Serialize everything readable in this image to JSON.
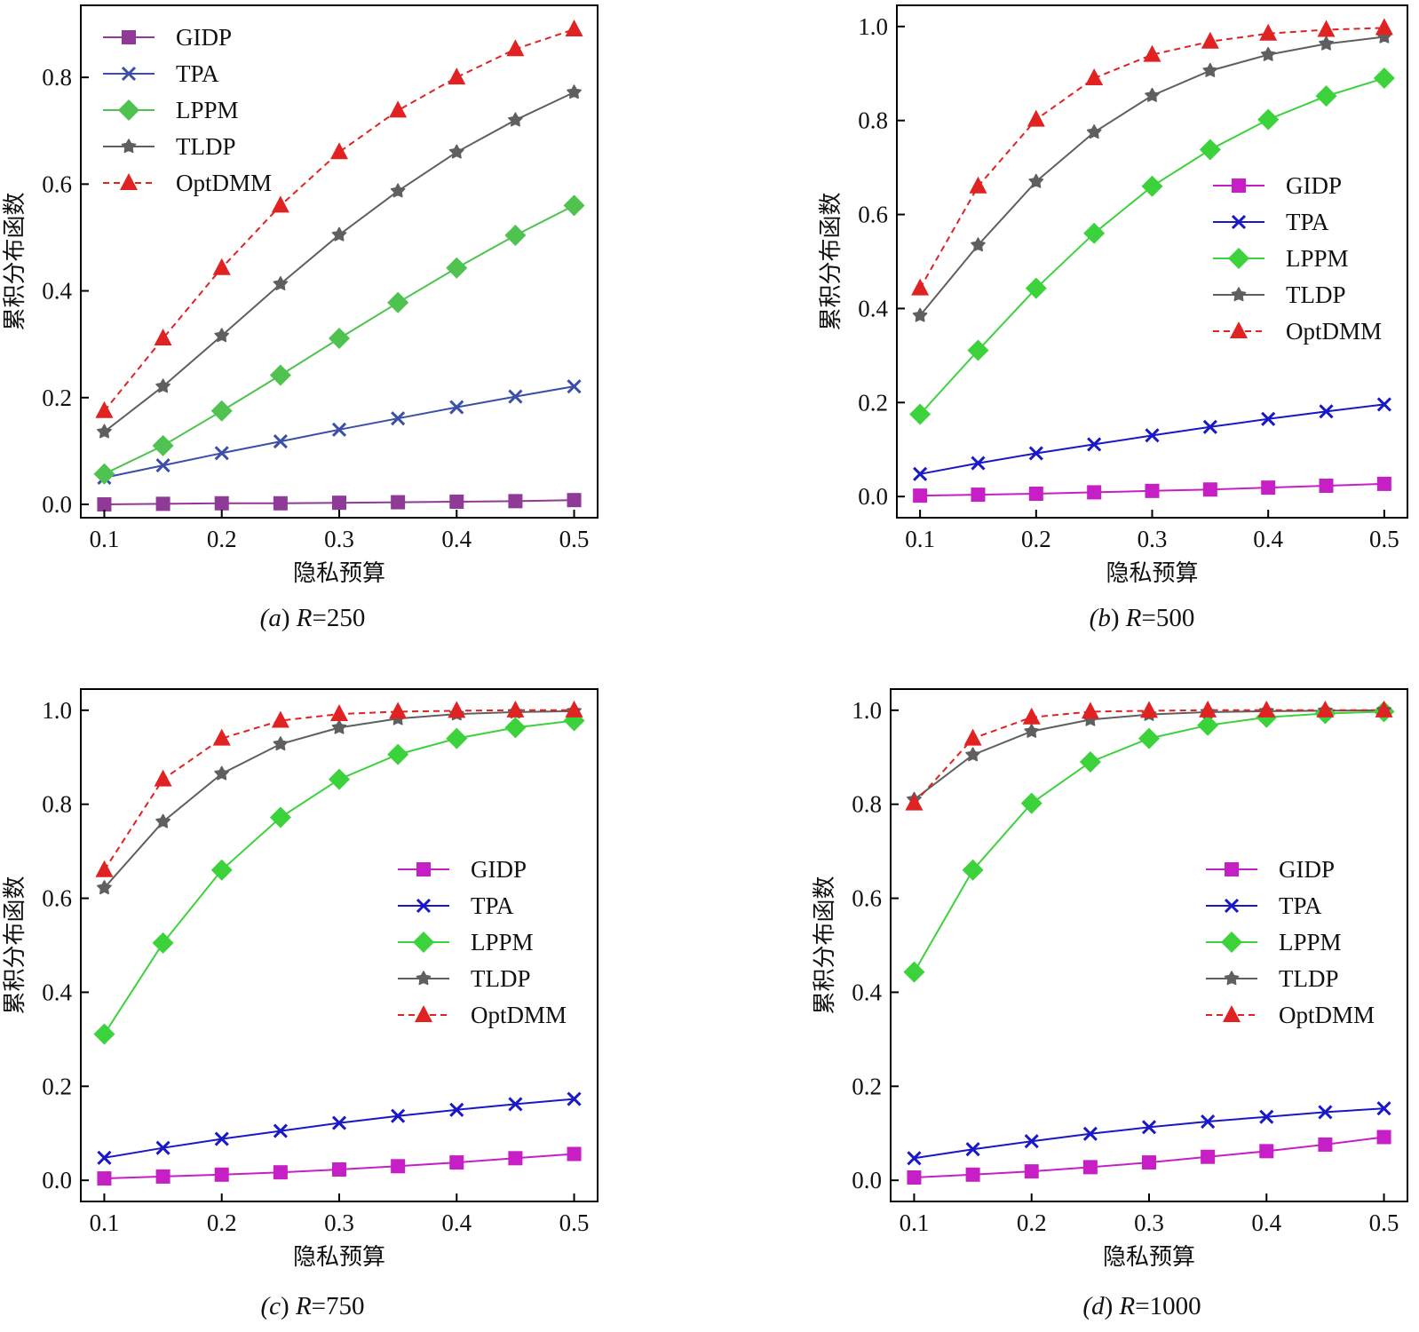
{
  "chart_data": [
    {
      "type": "line",
      "caption": {
        "prefix": "(a) ",
        "var": "R",
        "suffix": "=250"
      },
      "xlabel": "隐私预算",
      "ylabel": "累积分布函数",
      "x": [
        0.1,
        0.15,
        0.2,
        0.25,
        0.3,
        0.35,
        0.4,
        0.45,
        0.5
      ],
      "xticks": [
        "0.1",
        "0.2",
        "0.3",
        "0.4",
        "0.5"
      ],
      "yticks": [
        "0.0",
        "0.2",
        "0.4",
        "0.6",
        "0.8"
      ],
      "xlim": [
        0.08,
        0.52
      ],
      "ylim": [
        -0.025,
        0.935
      ],
      "legend_position": "top-left",
      "series": [
        {
          "name": "GIDP",
          "marker": "square",
          "color": "#8e3a96",
          "dashed": false,
          "values": [
            0.0,
            0.001,
            0.002,
            0.002,
            0.003,
            0.004,
            0.005,
            0.006,
            0.008
          ]
        },
        {
          "name": "TPA",
          "marker": "x",
          "color": "#3b4fa8",
          "dashed": false,
          "values": [
            0.05,
            0.073,
            0.096,
            0.118,
            0.14,
            0.161,
            0.182,
            0.202,
            0.221
          ]
        },
        {
          "name": "LPPM",
          "marker": "diamond",
          "color": "#4fc24f",
          "dashed": false,
          "values": [
            0.057,
            0.11,
            0.175,
            0.242,
            0.311,
            0.378,
            0.443,
            0.504,
            0.56
          ]
        },
        {
          "name": "TLDP",
          "marker": "star",
          "color": "#5f5f5f",
          "dashed": false,
          "values": [
            0.136,
            0.221,
            0.316,
            0.413,
            0.505,
            0.587,
            0.66,
            0.72,
            0.772
          ]
        },
        {
          "name": "OptDMM",
          "marker": "triangle",
          "color": "#e02222",
          "dashed": true,
          "values": [
            0.175,
            0.311,
            0.443,
            0.56,
            0.66,
            0.738,
            0.8,
            0.853,
            0.89
          ]
        }
      ]
    },
    {
      "type": "line",
      "caption": {
        "prefix": "(b) ",
        "var": "R",
        "suffix": "=500"
      },
      "xlabel": "隐私预算",
      "ylabel": "累积分布函数",
      "x": [
        0.1,
        0.15,
        0.2,
        0.25,
        0.3,
        0.35,
        0.4,
        0.45,
        0.5
      ],
      "xticks": [
        "0.1",
        "0.2",
        "0.3",
        "0.4",
        "0.5"
      ],
      "yticks": [
        "0.0",
        "0.2",
        "0.4",
        "0.6",
        "0.8",
        "1.0"
      ],
      "xlim": [
        0.08,
        0.52
      ],
      "ylim": [
        -0.045,
        1.045
      ],
      "legend_position": "center-right",
      "series": [
        {
          "name": "GIDP",
          "marker": "square",
          "color": "#c61fc6",
          "dashed": false,
          "values": [
            0.002,
            0.004,
            0.006,
            0.009,
            0.012,
            0.015,
            0.019,
            0.023,
            0.027
          ]
        },
        {
          "name": "TPA",
          "marker": "x",
          "color": "#1818c8",
          "dashed": false,
          "values": [
            0.048,
            0.071,
            0.092,
            0.111,
            0.13,
            0.148,
            0.165,
            0.181,
            0.196
          ]
        },
        {
          "name": "LPPM",
          "marker": "diamond",
          "color": "#3cd23c",
          "dashed": false,
          "values": [
            0.175,
            0.311,
            0.443,
            0.56,
            0.66,
            0.738,
            0.802,
            0.852,
            0.89
          ]
        },
        {
          "name": "TLDP",
          "marker": "star",
          "color": "#5f5f5f",
          "dashed": false,
          "values": [
            0.385,
            0.535,
            0.67,
            0.775,
            0.853,
            0.906,
            0.94,
            0.963,
            0.978
          ]
        },
        {
          "name": "OptDMM",
          "marker": "triangle",
          "color": "#e02222",
          "dashed": true,
          "values": [
            0.443,
            0.66,
            0.802,
            0.89,
            0.94,
            0.968,
            0.985,
            0.993,
            0.997
          ]
        }
      ]
    },
    {
      "type": "line",
      "caption": {
        "prefix": "(c) ",
        "var": "R",
        "suffix": "=750"
      },
      "xlabel": "隐私预算",
      "ylabel": "累积分布函数",
      "x": [
        0.1,
        0.15,
        0.2,
        0.25,
        0.3,
        0.35,
        0.4,
        0.45,
        0.5
      ],
      "xticks": [
        "0.1",
        "0.2",
        "0.3",
        "0.4",
        "0.5"
      ],
      "yticks": [
        "0.0",
        "0.2",
        "0.4",
        "0.6",
        "0.8",
        "1.0"
      ],
      "xlim": [
        0.08,
        0.52
      ],
      "ylim": [
        -0.045,
        1.045
      ],
      "legend_position": "center-right",
      "series": [
        {
          "name": "GIDP",
          "marker": "square",
          "color": "#c61fc6",
          "dashed": false,
          "values": [
            0.004,
            0.008,
            0.012,
            0.017,
            0.023,
            0.03,
            0.038,
            0.047,
            0.056
          ]
        },
        {
          "name": "TPA",
          "marker": "x",
          "color": "#1818c8",
          "dashed": false,
          "values": [
            0.048,
            0.069,
            0.088,
            0.105,
            0.122,
            0.137,
            0.15,
            0.162,
            0.173
          ]
        },
        {
          "name": "LPPM",
          "marker": "diamond",
          "color": "#3cd23c",
          "dashed": false,
          "values": [
            0.311,
            0.505,
            0.66,
            0.772,
            0.853,
            0.906,
            0.94,
            0.963,
            0.978
          ]
        },
        {
          "name": "TLDP",
          "marker": "star",
          "color": "#5f5f5f",
          "dashed": false,
          "values": [
            0.622,
            0.763,
            0.865,
            0.928,
            0.963,
            0.982,
            0.992,
            0.996,
            0.998
          ]
        },
        {
          "name": "OptDMM",
          "marker": "triangle",
          "color": "#e02222",
          "dashed": true,
          "values": [
            0.66,
            0.853,
            0.94,
            0.978,
            0.992,
            0.997,
            0.999,
            1.0,
            1.0
          ]
        }
      ]
    },
    {
      "type": "line",
      "caption": {
        "prefix": "(d) ",
        "var": "R",
        "suffix": "=1000"
      },
      "xlabel": "隐私预算",
      "ylabel": "累积分布函数",
      "x": [
        0.1,
        0.15,
        0.2,
        0.25,
        0.3,
        0.35,
        0.4,
        0.45,
        0.5
      ],
      "xticks": [
        "0.1",
        "0.2",
        "0.3",
        "0.4",
        "0.5"
      ],
      "yticks": [
        "0.0",
        "0.2",
        "0.4",
        "0.6",
        "0.8",
        "1.0"
      ],
      "xlim": [
        0.08,
        0.52
      ],
      "ylim": [
        -0.045,
        1.045
      ],
      "legend_position": "center-right",
      "series": [
        {
          "name": "GIDP",
          "marker": "square",
          "color": "#c61fc6",
          "dashed": false,
          "values": [
            0.006,
            0.012,
            0.019,
            0.028,
            0.038,
            0.05,
            0.062,
            0.076,
            0.092
          ]
        },
        {
          "name": "TPA",
          "marker": "x",
          "color": "#1818c8",
          "dashed": false,
          "values": [
            0.047,
            0.066,
            0.083,
            0.099,
            0.113,
            0.125,
            0.135,
            0.145,
            0.153
          ]
        },
        {
          "name": "LPPM",
          "marker": "diamond",
          "color": "#3cd23c",
          "dashed": false,
          "values": [
            0.443,
            0.66,
            0.802,
            0.89,
            0.94,
            0.968,
            0.985,
            0.993,
            0.997
          ]
        },
        {
          "name": "TLDP",
          "marker": "star",
          "color": "#5f5f5f",
          "dashed": false,
          "values": [
            0.81,
            0.905,
            0.955,
            0.98,
            0.991,
            0.996,
            0.998,
            0.999,
            1.0
          ]
        },
        {
          "name": "OptDMM",
          "marker": "triangle",
          "color": "#e02222",
          "dashed": true,
          "values": [
            0.802,
            0.94,
            0.985,
            0.997,
            0.999,
            1.0,
            1.0,
            1.0,
            1.0
          ]
        }
      ]
    }
  ]
}
